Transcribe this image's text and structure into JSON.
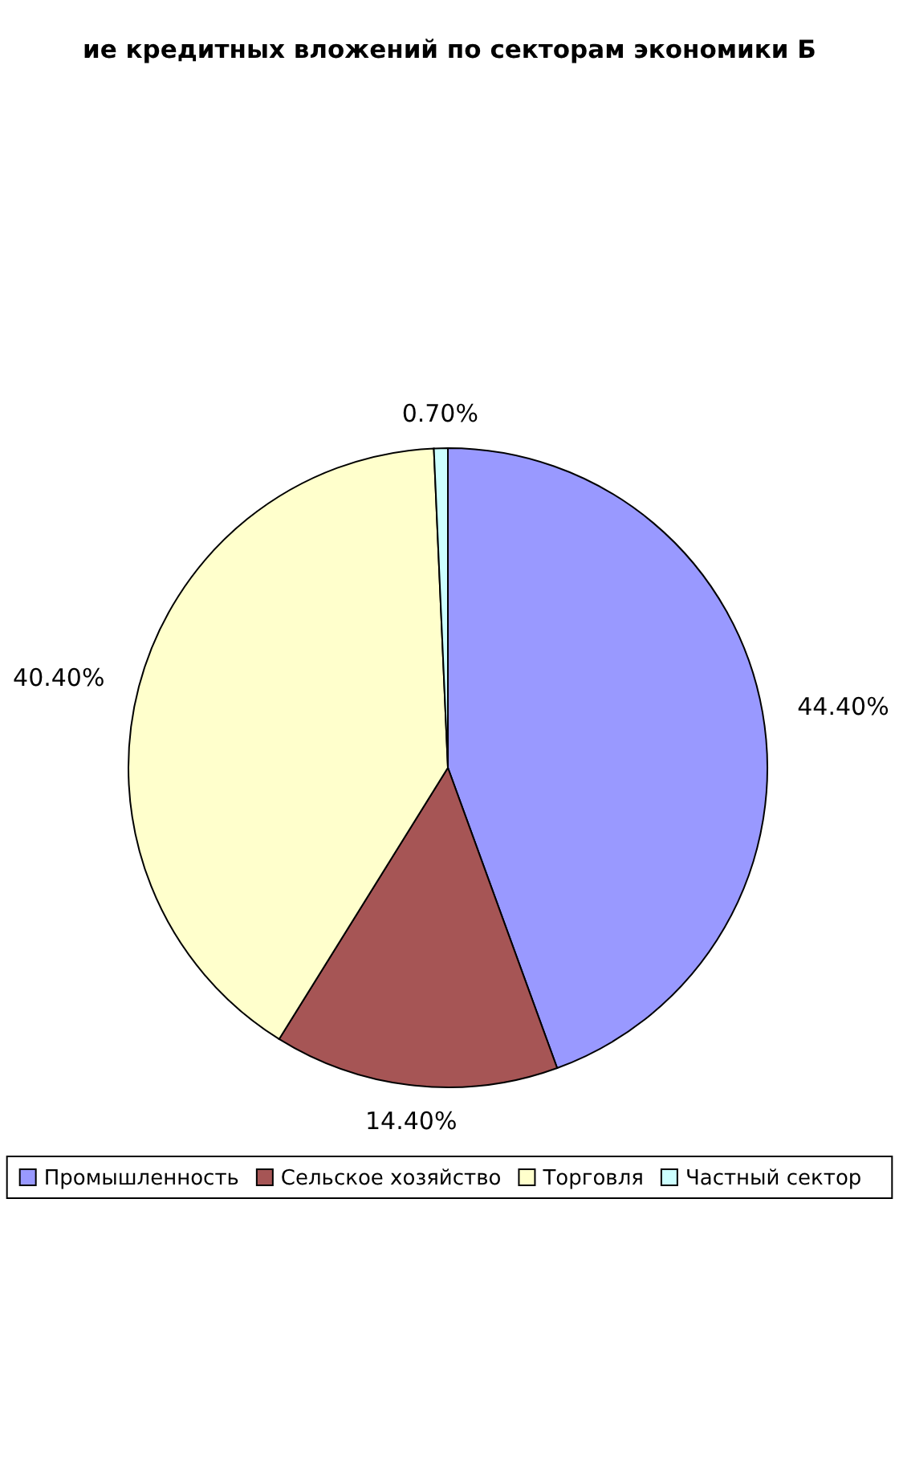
{
  "chart_data": {
    "type": "pie",
    "title": "ие кредитных вложений по секторам экономики Б",
    "categories": [
      "Промышленность",
      "Сельское хозяйство",
      "Торговля",
      "Частный сектор"
    ],
    "values": [
      44.4,
      14.4,
      40.4,
      0.7
    ],
    "colors": [
      "#9999ff",
      "#a65555",
      "#ffffcc",
      "#ccffff"
    ],
    "value_labels": [
      "44.40%",
      "14.40%",
      "40.40%",
      "0.70%"
    ],
    "legend": "bottom"
  }
}
